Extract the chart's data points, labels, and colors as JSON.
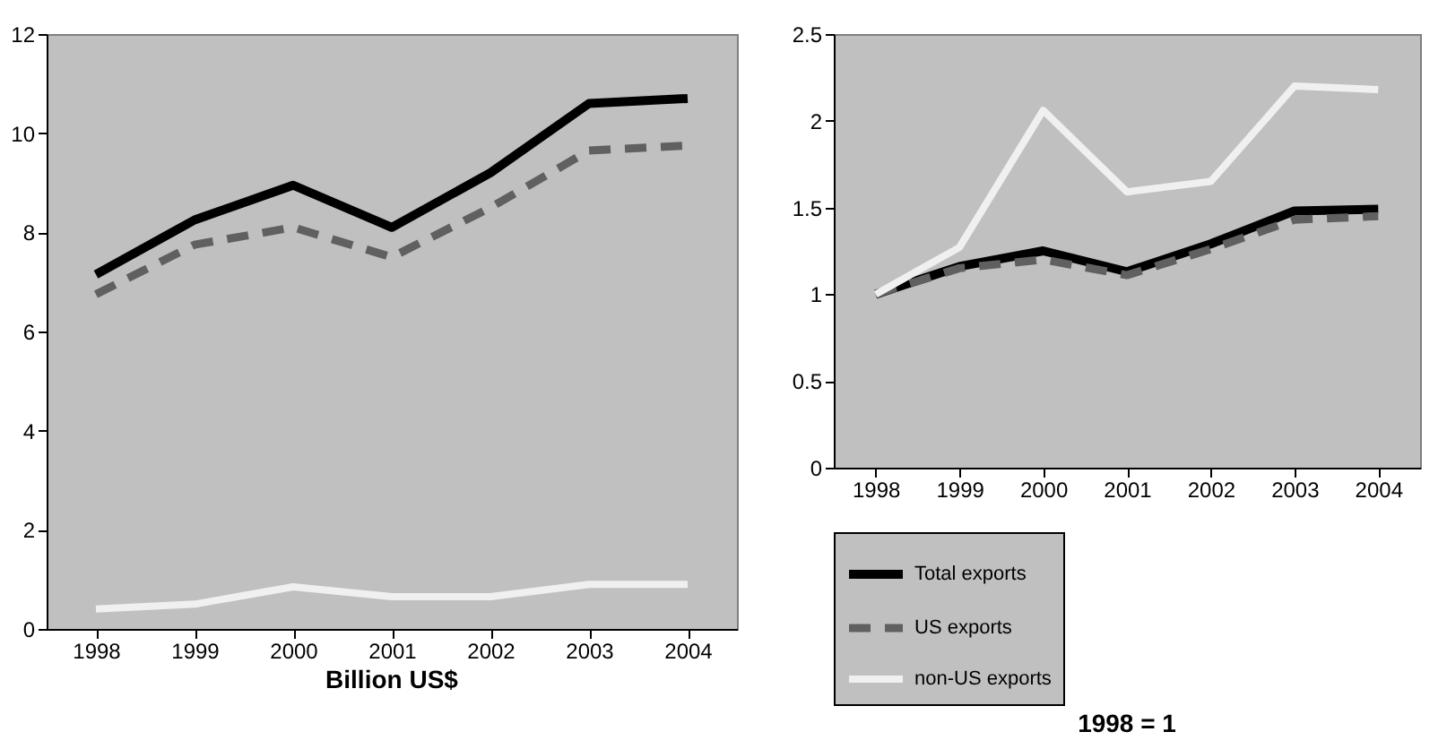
{
  "chart_data": [
    {
      "type": "line",
      "xlabel": "Billion US$",
      "categories": [
        "1998",
        "1999",
        "2000",
        "2001",
        "2002",
        "2003",
        "2004"
      ],
      "ylim": [
        0,
        12
      ],
      "yticks": [
        0,
        2,
        4,
        6,
        8,
        10,
        12
      ],
      "grid": false,
      "legend": false,
      "series": [
        {
          "color": "#000000",
          "line_style": "solid",
          "values": [
            7.15,
            8.25,
            8.95,
            8.1,
            9.2,
            10.6,
            10.7
          ]
        },
        {
          "color": "#606060",
          "line_style": "dashed",
          "values": [
            6.75,
            7.75,
            8.1,
            7.5,
            8.5,
            9.65,
            9.75
          ]
        },
        {
          "color": "#f0f0f0",
          "line_style": "solid",
          "values": [
            0.4,
            0.5,
            0.85,
            0.65,
            0.65,
            0.9,
            0.9
          ]
        }
      ]
    },
    {
      "type": "line",
      "xlabel": "1998 = 1",
      "categories": [
        "1998",
        "1999",
        "2000",
        "2001",
        "2002",
        "2003",
        "2004"
      ],
      "ylim": [
        0,
        2.5
      ],
      "yticks": [
        0,
        0.5,
        1,
        1.5,
        2,
        2.5
      ],
      "grid": false,
      "legend": "bottom",
      "series": [
        {
          "name": "Total exports",
          "color": "#000000",
          "line_style": "solid",
          "values": [
            1,
            1.16,
            1.25,
            1.13,
            1.29,
            1.48,
            1.49
          ]
        },
        {
          "name": "US exports",
          "color": "#606060",
          "line_style": "dashed",
          "values": [
            1,
            1.15,
            1.2,
            1.11,
            1.26,
            1.43,
            1.45
          ]
        },
        {
          "name": "non-US exports",
          "color": "#f0f0f0",
          "line_style": "solid",
          "values": [
            1,
            1.27,
            2.06,
            1.59,
            1.65,
            2.2,
            2.18
          ]
        }
      ]
    }
  ]
}
